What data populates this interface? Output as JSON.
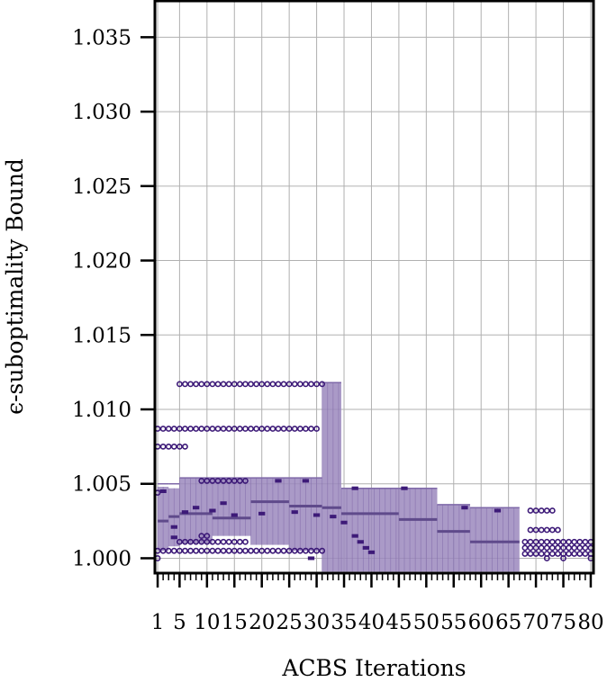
{
  "chart_data": {
    "type": "box",
    "xlabel": "ACBS Iterations",
    "ylabel": "ϵ-suboptimality Bound",
    "xlim": [
      0.5,
      80.5
    ],
    "ylim": [
      0.999,
      1.0375
    ],
    "xticks": [
      1,
      5,
      10,
      15,
      20,
      25,
      30,
      35,
      40,
      45,
      50,
      55,
      60,
      65,
      70,
      75,
      80
    ],
    "xtick_labels": [
      "1",
      "5",
      "10",
      "15",
      "20",
      "25",
      "30",
      "35",
      "40",
      "45",
      "50",
      "55",
      "60",
      "65",
      "70",
      "75",
      "80"
    ],
    "yticks": [
      1.0,
      1.005,
      1.01,
      1.015,
      1.02,
      1.025,
      1.03,
      1.035
    ],
    "ytick_labels": [
      "1.000",
      "1.005",
      "1.010",
      "1.015",
      "1.020",
      "1.025",
      "1.030",
      "1.035"
    ],
    "grid": true,
    "colors": {
      "box": "#9b88bd",
      "edge": "#7e68a8",
      "median": "#5f4a8b",
      "mean": "#3d1a78",
      "outlier": "#3d1a78"
    },
    "box_segments": [
      {
        "from": 1,
        "to": 3,
        "q1": 1.0005,
        "q3": 1.0048,
        "median": 1.0025,
        "mean": 1.0042,
        "whisker_low": 1.0,
        "whisker_high": 1.005
      },
      {
        "from": 3,
        "to": 5,
        "q1": 1.0008,
        "q3": 1.0047,
        "median": 1.0028,
        "mean": 1.0014,
        "whisker_low": 1.0004,
        "whisker_high": 1.005
      },
      {
        "from": 5,
        "to": 11,
        "q1": 1.001,
        "q3": 1.0054,
        "median": 1.003,
        "mean": 1.0032,
        "whisker_low": 1.0005,
        "whisker_high": 1.0054
      },
      {
        "from": 11,
        "to": 18,
        "q1": 1.0015,
        "q3": 1.0054,
        "median": 1.0027,
        "mean": 1.0032,
        "whisker_low": 1.0005,
        "whisker_high": 1.0054
      },
      {
        "from": 18,
        "to": 25,
        "q1": 1.0009,
        "q3": 1.0054,
        "median": 1.0038,
        "mean": 1.003,
        "whisker_low": 1.0005,
        "whisker_high": 1.0054
      },
      {
        "from": 25,
        "to": 31,
        "q1": 1.0005,
        "q3": 1.0054,
        "median": 1.0035,
        "mean": 1.003,
        "whisker_low": 1.0,
        "whisker_high": 1.0054
      },
      {
        "from": 31,
        "to": 34.5,
        "q1": 0.9991,
        "q3": 1.0118,
        "median": 1.0034,
        "mean": 1.0028,
        "whisker_low": 0.9991,
        "whisker_high": 1.0118
      },
      {
        "from": 34.5,
        "to": 45,
        "q1": 0.9991,
        "q3": 1.0047,
        "median": 1.003,
        "mean": 1.0025,
        "whisker_low": 0.9991,
        "whisker_high": 1.0047
      },
      {
        "from": 45,
        "to": 52,
        "q1": 0.9991,
        "q3": 1.0047,
        "median": 1.0026,
        "mean": 1.003,
        "whisker_low": 0.9991,
        "whisker_high": 1.0047
      },
      {
        "from": 52,
        "to": 58,
        "q1": 0.9991,
        "q3": 1.0036,
        "median": 1.0018,
        "mean": 1.002,
        "whisker_low": 0.9991,
        "whisker_high": 1.0036
      },
      {
        "from": 58,
        "to": 67,
        "q1": 0.9991,
        "q3": 1.0034,
        "median": 1.0011,
        "mean": 1.003,
        "whisker_low": 0.9991,
        "whisker_high": 1.0034
      }
    ],
    "mean_markers": [
      {
        "x": 2,
        "y": 1.0045
      },
      {
        "x": 4,
        "y": 1.0014
      },
      {
        "x": 4,
        "y": 1.0021
      },
      {
        "x": 6,
        "y": 1.0031
      },
      {
        "x": 8,
        "y": 1.0034
      },
      {
        "x": 11,
        "y": 1.0032
      },
      {
        "x": 13,
        "y": 1.0037
      },
      {
        "x": 15,
        "y": 1.0029
      },
      {
        "x": 20,
        "y": 1.003
      },
      {
        "x": 23,
        "y": 1.0052
      },
      {
        "x": 26,
        "y": 1.0031
      },
      {
        "x": 28,
        "y": 1.0052
      },
      {
        "x": 30,
        "y": 1.0029
      },
      {
        "x": 33,
        "y": 1.0028
      },
      {
        "x": 37,
        "y": 1.0047
      },
      {
        "x": 35,
        "y": 1.0024
      },
      {
        "x": 37,
        "y": 1.0015
      },
      {
        "x": 38,
        "y": 1.0011
      },
      {
        "x": 39,
        "y": 1.0007
      },
      {
        "x": 40,
        "y": 1.0004
      },
      {
        "x": 46,
        "y": 1.0047
      },
      {
        "x": 57,
        "y": 1.0034
      },
      {
        "x": 63,
        "y": 1.0032
      },
      {
        "x": 29,
        "y": 1.0
      }
    ],
    "outlier_rows": [
      {
        "y": 1.0117,
        "from": 5,
        "to": 31
      },
      {
        "y": 1.0087,
        "from": 1,
        "to": 30
      },
      {
        "y": 1.0075,
        "from": 1,
        "to": 6
      },
      {
        "y": 1.0052,
        "from": 9,
        "to": 17
      },
      {
        "y": 1.0015,
        "from": 9,
        "to": 10
      },
      {
        "y": 1.0011,
        "from": 5,
        "to": 17
      },
      {
        "y": 1.0005,
        "from": 1,
        "to": 31
      },
      {
        "y": 1.0032,
        "from": 69,
        "to": 73
      },
      {
        "y": 1.0019,
        "from": 69,
        "to": 74
      },
      {
        "y": 1.0011,
        "from": 68,
        "to": 80
      },
      {
        "y": 1.0007,
        "from": 68,
        "to": 80
      },
      {
        "y": 1.0003,
        "from": 68,
        "to": 80
      }
    ],
    "outlier_points": [
      {
        "x": 1,
        "y": 1.0
      },
      {
        "x": 1,
        "y": 1.0044
      },
      {
        "x": 72,
        "y": 1.0
      },
      {
        "x": 75,
        "y": 1.0
      },
      {
        "x": 80,
        "y": 1.0
      }
    ]
  }
}
